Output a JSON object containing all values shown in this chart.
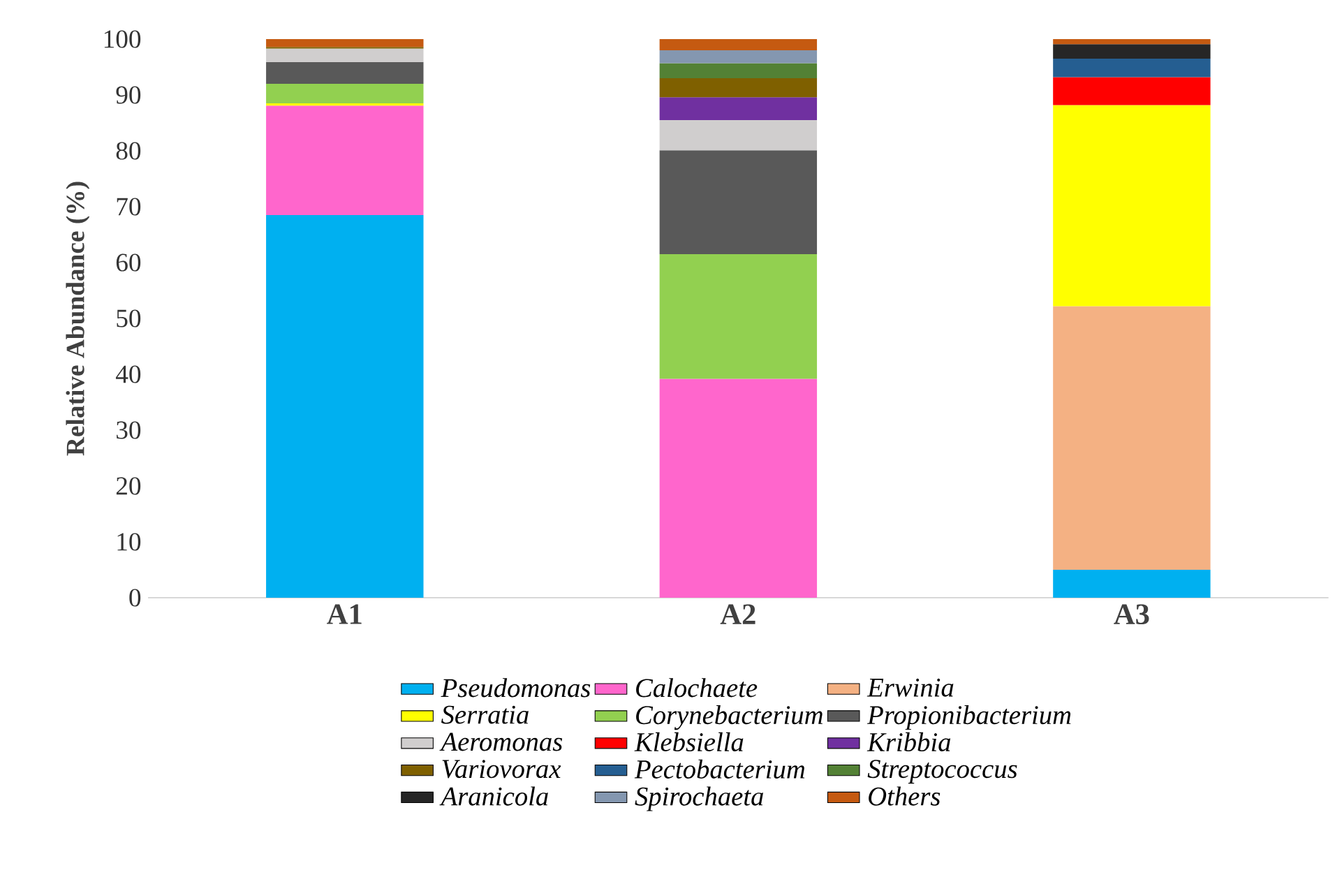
{
  "chart_data": {
    "type": "bar",
    "stacked": true,
    "ylabel": "Relative Abundance (%)",
    "categories": [
      "A1",
      "A2",
      "A3"
    ],
    "ylim": [
      0,
      100
    ],
    "yticks": [
      0,
      10,
      20,
      30,
      40,
      50,
      60,
      70,
      80,
      90,
      100
    ],
    "legend": "bottom",
    "series": [
      {
        "name": "Pseudomonas",
        "color": "#00b0f0",
        "values": [
          68.5,
          null,
          5.0
        ]
      },
      {
        "name": "Calochaete",
        "color": "#ff66cc",
        "values": [
          19.6,
          39.2,
          null
        ]
      },
      {
        "name": "Erwinia",
        "color": "#f4b183",
        "values": [
          null,
          null,
          47.2
        ]
      },
      {
        "name": "Serratia",
        "color": "#ffff00",
        "values": [
          0.4,
          null,
          36.0
        ]
      },
      {
        "name": "Corynebacterium",
        "color": "#92d050",
        "values": [
          3.5,
          22.3,
          null
        ]
      },
      {
        "name": "Propionibacterium",
        "color": "#595959",
        "values": [
          3.9,
          18.6,
          null
        ]
      },
      {
        "name": "Aeromonas",
        "color": "#d0cece",
        "values": [
          2.4,
          5.4,
          null
        ]
      },
      {
        "name": "Klebsiella",
        "color": "#ff0000",
        "values": [
          null,
          null,
          5.0
        ]
      },
      {
        "name": "Kribbia",
        "color": "#7030a0",
        "values": [
          null,
          4.1,
          null
        ]
      },
      {
        "name": "Variovorax",
        "color": "#7f6000",
        "values": [
          0.3,
          3.4,
          null
        ]
      },
      {
        "name": "Pectobacterium",
        "color": "#255e91",
        "values": [
          null,
          null,
          3.3
        ]
      },
      {
        "name": "Streptococcus",
        "color": "#538135",
        "values": [
          null,
          2.7,
          null
        ]
      },
      {
        "name": "Aranicola",
        "color": "#262626",
        "values": [
          null,
          null,
          2.6
        ]
      },
      {
        "name": "Spirochaeta",
        "color": "#8497b0",
        "values": [
          null,
          2.3,
          null
        ]
      },
      {
        "name": "Others",
        "color": "#c55a11",
        "values": [
          1.4,
          2.0,
          0.9
        ]
      }
    ]
  }
}
